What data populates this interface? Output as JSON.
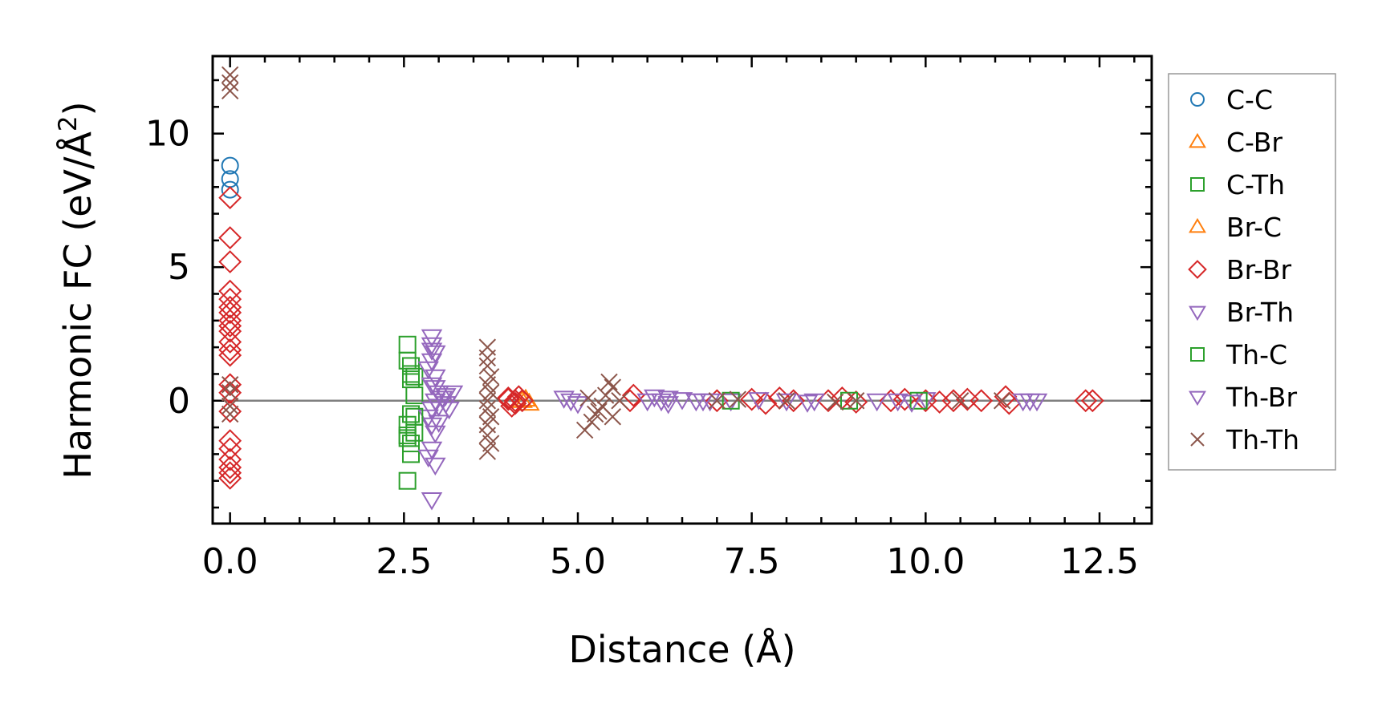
{
  "chart_data": {
    "type": "scatter",
    "xlabel": "Distance (Å)",
    "ylabel_main": "Harmonic FC (eV/Å",
    "ylabel_sup": "2",
    "ylabel_close": ")",
    "xlim": [
      -0.25,
      13.25
    ],
    "ylim": [
      -4.6,
      12.9
    ],
    "xticks": [
      0.0,
      2.5,
      5.0,
      7.5,
      10.0,
      12.5
    ],
    "xtick_labels": [
      "0.0",
      "2.5",
      "5.0",
      "7.5",
      "10.0",
      "12.5"
    ],
    "yticks": [
      0,
      5,
      10
    ],
    "ytick_labels": [
      "0",
      "5",
      "10"
    ],
    "zero_line": true,
    "legend_position": "outside-right",
    "series": [
      {
        "name": "C-C",
        "marker": "circle",
        "color": "#1f77b4",
        "x": [
          0.0,
          0.0,
          0.0
        ],
        "y": [
          8.8,
          8.3,
          7.9
        ]
      },
      {
        "name": "C-Br",
        "marker": "triangle-up",
        "color": "#ff7f0e",
        "x": [
          4.2,
          4.3
        ],
        "y": [
          0.0,
          -0.1
        ]
      },
      {
        "name": "C-Th",
        "marker": "square",
        "color": "#2ca02c",
        "x": [
          2.55,
          2.55,
          2.6,
          2.6,
          2.65,
          2.65,
          2.6,
          2.55,
          2.55,
          2.6,
          2.6,
          2.55,
          2.65
        ],
        "y": [
          2.1,
          1.5,
          1.3,
          0.8,
          0.9,
          0.2,
          -0.5,
          -0.9,
          -1.3,
          -1.6,
          -2.0,
          -3.0,
          -1.2
        ]
      },
      {
        "name": "Br-C",
        "marker": "triangle-up",
        "color": "#ff7f0e",
        "x": [
          4.25
        ],
        "y": [
          0.05
        ]
      },
      {
        "name": "Br-Br",
        "marker": "diamond",
        "color": "#d62728",
        "x": [
          0.0,
          0.0,
          0.0,
          0.0,
          0.0,
          0.0,
          0.0,
          0.0,
          0.0,
          0.0,
          0.0,
          0.0,
          0.0,
          0.0,
          0.0,
          0.0,
          0.0,
          0.0,
          0.0,
          0.0,
          0.0,
          0.0,
          4.0,
          4.05,
          4.1,
          4.15,
          4.1,
          4.0,
          4.2,
          5.8,
          5.75,
          7.0,
          7.5,
          7.7,
          7.9,
          8.1,
          8.6,
          8.8,
          9.0,
          9.5,
          9.7,
          10.0,
          10.2,
          10.4,
          10.6,
          10.8,
          11.15,
          11.2,
          12.3,
          12.4
        ],
        "y": [
          7.6,
          6.1,
          5.2,
          4.1,
          3.8,
          3.5,
          3.3,
          3.0,
          2.8,
          2.6,
          2.2,
          1.9,
          1.7,
          0.6,
          0.3,
          -0.4,
          -1.5,
          -1.8,
          -2.2,
          -2.5,
          -2.7,
          -2.9,
          0.1,
          -0.2,
          0.0,
          0.15,
          -0.1,
          0.05,
          0.0,
          0.2,
          0.0,
          0.0,
          0.05,
          -0.1,
          0.1,
          0.0,
          0.0,
          0.1,
          -0.05,
          0.0,
          0.05,
          0.0,
          -0.05,
          0.0,
          0.05,
          0.0,
          0.15,
          -0.1,
          0.0,
          0.0
        ]
      },
      {
        "name": "Br-Th",
        "marker": "triangle-down",
        "color": "#9467bd",
        "x": [
          2.9,
          2.9,
          2.95,
          2.9,
          2.85,
          2.95,
          2.9,
          3.0,
          2.95,
          2.9,
          2.85,
          2.9,
          2.95,
          3.0,
          3.05,
          3.1,
          3.2,
          2.9,
          2.95,
          2.9,
          4.8,
          4.9,
          5.0,
          6.1,
          6.2,
          6.3,
          6.5,
          6.7,
          6.9,
          7.2,
          7.6,
          8.0,
          8.3,
          9.3,
          9.6,
          10.0,
          11.4,
          11.6
        ],
        "y": [
          2.4,
          2.1,
          1.8,
          1.5,
          1.2,
          0.9,
          0.6,
          0.3,
          0.0,
          -0.3,
          -0.6,
          -0.9,
          -1.2,
          -0.2,
          0.1,
          -0.1,
          0.3,
          -1.8,
          -2.4,
          -3.7,
          0.1,
          0.0,
          -0.1,
          0.15,
          0.0,
          -0.1,
          0.05,
          0.0,
          0.0,
          0.0,
          0.05,
          0.0,
          -0.05,
          0.0,
          0.0,
          0.05,
          0.0,
          0.0
        ]
      },
      {
        "name": "Th-C",
        "marker": "square",
        "color": "#2ca02c",
        "x": [
          2.6,
          2.65,
          2.55,
          7.2,
          8.9,
          9.9
        ],
        "y": [
          1.0,
          -0.6,
          -1.4,
          0.0,
          0.0,
          0.0
        ]
      },
      {
        "name": "Th-Br",
        "marker": "triangle-down",
        "color": "#9467bd",
        "x": [
          2.9,
          2.95,
          3.0,
          2.85,
          3.1,
          3.15,
          6.0,
          6.3,
          6.8,
          8.4,
          9.8,
          11.5
        ],
        "y": [
          1.9,
          0.5,
          -0.8,
          -2.1,
          0.2,
          -0.3,
          0.0,
          0.1,
          0.0,
          0.0,
          -0.05,
          0.0
        ]
      },
      {
        "name": "Th-Th",
        "marker": "x",
        "color": "#8c564b",
        "x": [
          0.0,
          0.0,
          0.0,
          0.0,
          0.0,
          0.0,
          0.0,
          3.7,
          3.7,
          3.7,
          3.75,
          3.7,
          3.75,
          3.7,
          3.7,
          3.75,
          3.7,
          3.7,
          3.75,
          3.7,
          5.1,
          5.2,
          5.3,
          5.4,
          5.5,
          5.5,
          5.6,
          5.15,
          5.45,
          5.35,
          5.25,
          7.0,
          7.3,
          8.0,
          8.7,
          9.0,
          10.5,
          11.1
        ],
        "y": [
          12.2,
          11.9,
          11.6,
          0.6,
          0.3,
          -0.2,
          -0.5,
          2.0,
          1.6,
          1.3,
          0.9,
          0.6,
          0.3,
          0.0,
          -0.3,
          -0.6,
          -0.9,
          -1.3,
          -1.6,
          -1.9,
          -1.1,
          -0.8,
          -0.4,
          0.2,
          0.5,
          -0.6,
          0.0,
          0.1,
          0.7,
          -0.2,
          -0.5,
          0.0,
          0.05,
          0.0,
          -0.05,
          0.0,
          0.0,
          0.0
        ]
      }
    ]
  }
}
